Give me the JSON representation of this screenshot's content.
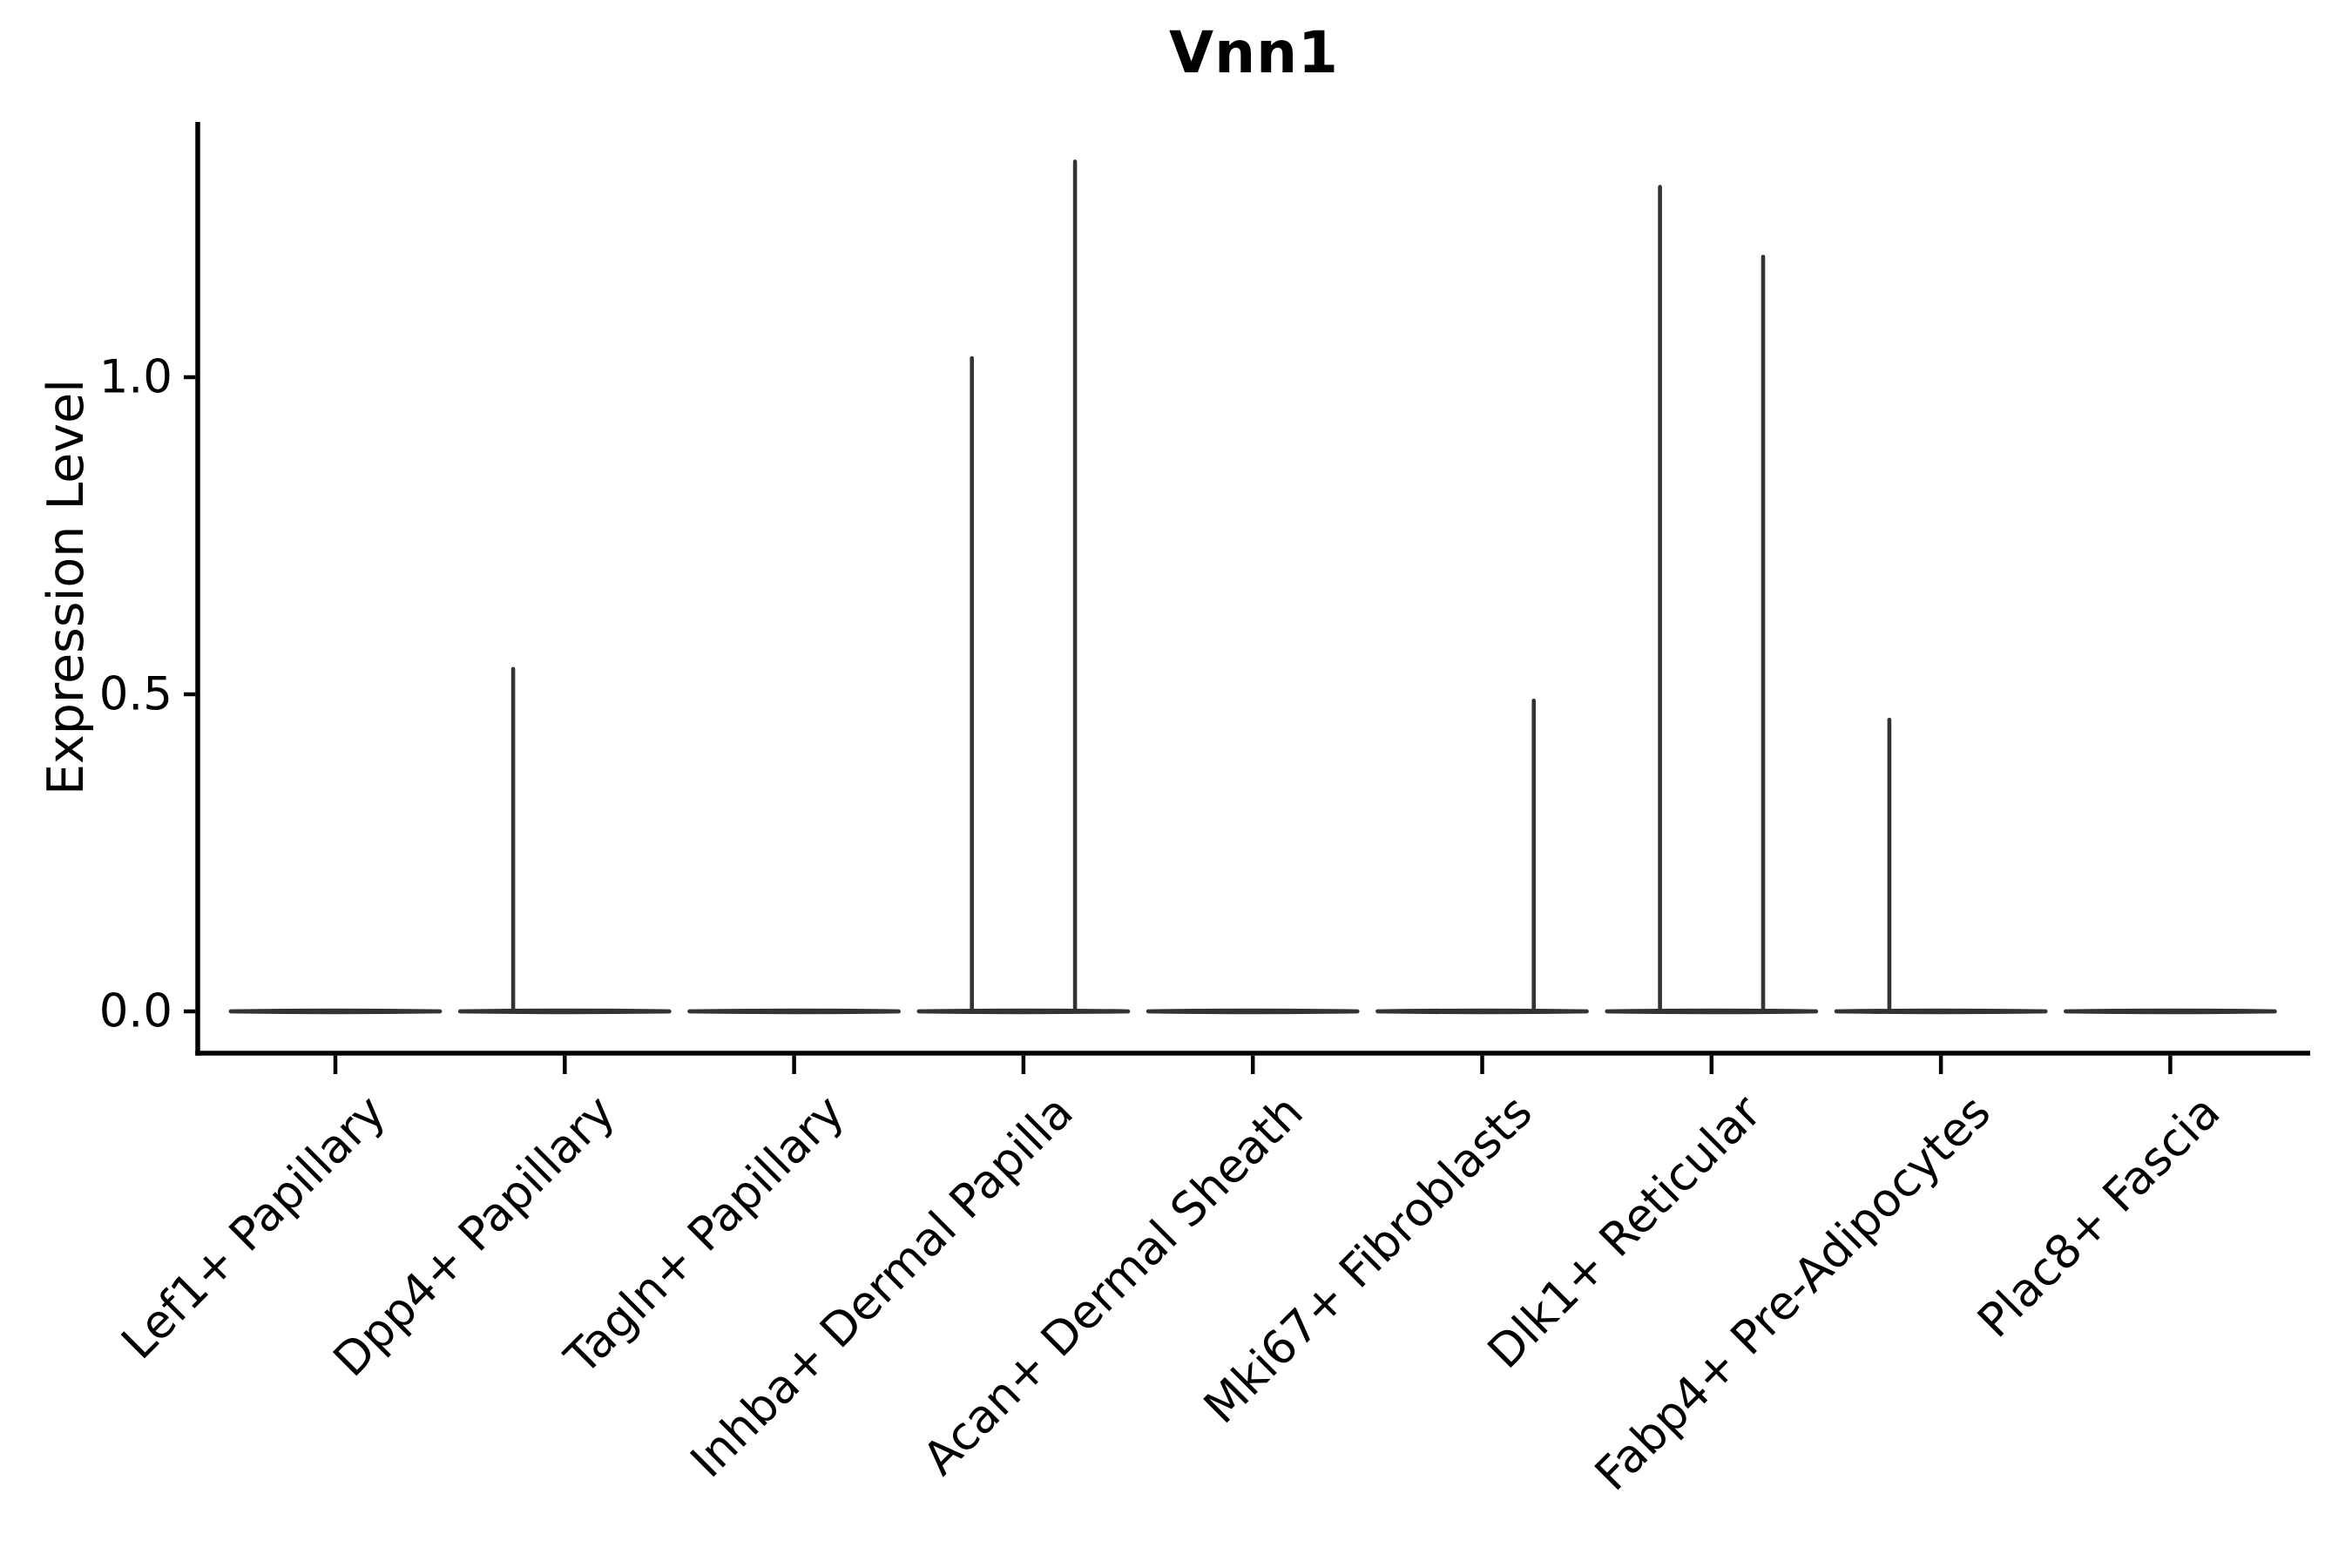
{
  "title": "Vnn1",
  "y_axis_label": "Expression Level",
  "chart_data": {
    "type": "violin",
    "title": "Vnn1",
    "xlabel": "",
    "ylabel": "Expression Level",
    "ylim": [
      0,
      1.4
    ],
    "yticks": [
      0.0,
      0.5,
      1.0
    ],
    "ytick_labels": [
      "0.0",
      "0.5",
      "1.0"
    ],
    "grid": false,
    "legend": "none",
    "categories": [
      "Lef1+ Papillary",
      "Dpp4+ Papillary",
      "Tagln+ Papillary",
      "Inhba+ Dermal Papilla",
      "Acan+ Dermal Sheath",
      "Mki67+ Fibroblasts",
      "Dlk1+ Reticular",
      "Fabp4+ Pre-Adipocytes",
      "Plac8+ Fascia"
    ],
    "violins": [
      {
        "category": "Lef1+ Papillary",
        "baseline_value": 0.0,
        "spikes": []
      },
      {
        "category": "Dpp4+ Papillary",
        "baseline_value": 0.0,
        "spikes": [
          {
            "position": "left",
            "max": 0.54
          }
        ]
      },
      {
        "category": "Tagln+ Papillary",
        "baseline_value": 0.0,
        "spikes": []
      },
      {
        "category": "Inhba+ Dermal Papilla",
        "baseline_value": 0.0,
        "spikes": [
          {
            "position": "left",
            "max": 1.03
          },
          {
            "position": "right",
            "max": 1.34
          }
        ]
      },
      {
        "category": "Acan+ Dermal Sheath",
        "baseline_value": 0.0,
        "spikes": []
      },
      {
        "category": "Mki67+ Fibroblasts",
        "baseline_value": 0.0,
        "spikes": [
          {
            "position": "right",
            "max": 0.49
          }
        ]
      },
      {
        "category": "Dlk1+ Reticular",
        "baseline_value": 0.0,
        "spikes": [
          {
            "position": "left",
            "max": 1.3
          },
          {
            "position": "right",
            "max": 1.19
          }
        ]
      },
      {
        "category": "Fabp4+ Pre-Adipocytes",
        "baseline_value": 0.0,
        "spikes": [
          {
            "position": "left",
            "max": 0.46
          }
        ]
      },
      {
        "category": "Plac8+ Fascia",
        "baseline_value": 0.0,
        "spikes": []
      }
    ],
    "colors": {
      "violin_stroke": "#333333",
      "axis": "#000000",
      "text": "#000000",
      "background": "#ffffff"
    }
  }
}
